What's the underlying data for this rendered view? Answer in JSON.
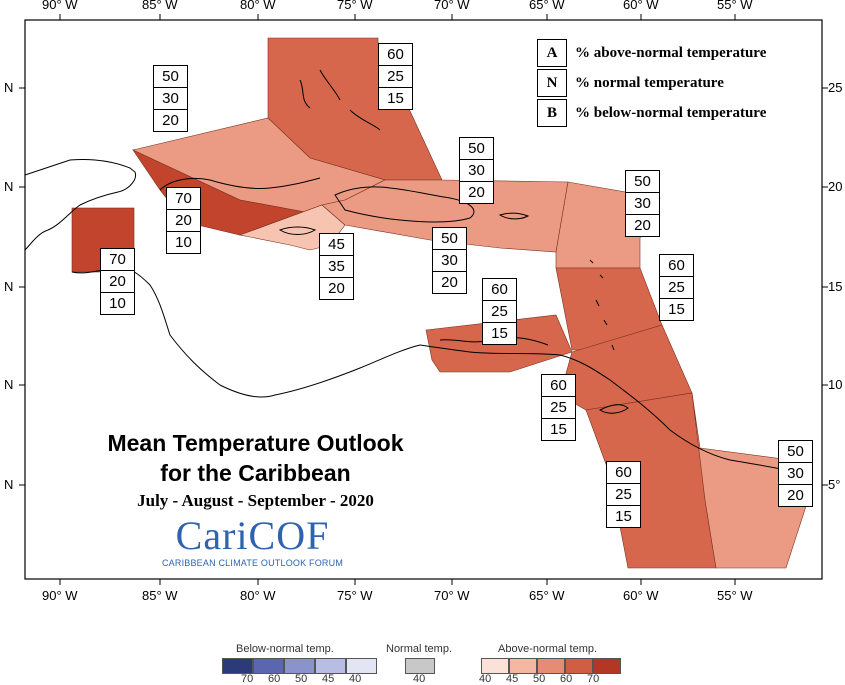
{
  "axes": {
    "lon_ticks_top": [
      "90° W",
      "85° W",
      "80° W",
      "75° W",
      "70° W",
      "65° W",
      "60° W",
      "55° W"
    ],
    "lon_ticks_bottom": [
      "90° W",
      "85° W",
      "80° W",
      "75° W",
      "70° W",
      "65° W",
      "60° W",
      "55° W"
    ],
    "lat_ticks_left": [
      "N",
      "N",
      "N",
      "N",
      "N"
    ],
    "lat_ticks_right": [
      "25",
      "20",
      "15",
      "10",
      "5°"
    ]
  },
  "key": {
    "rows": [
      {
        "letter": "A",
        "text": "% above-normal temperature"
      },
      {
        "letter": "N",
        "text": "% normal temperature"
      },
      {
        "letter": "B",
        "text": "% below-normal temperature"
      }
    ]
  },
  "title": {
    "line1": "Mean Temperature Outlook",
    "line2": "for the Caribbean",
    "period": "July - August - September - 2020"
  },
  "logo": {
    "text": "CariCOF",
    "sub": "CARIBBEAN CLIMATE OUTLOOK FORUM"
  },
  "probability_boxes": [
    {
      "region": "bahamas",
      "a": "60",
      "n": "25",
      "b": "15"
    },
    {
      "region": "cuba-north",
      "a": "50",
      "n": "30",
      "b": "20"
    },
    {
      "region": "cuba-south",
      "a": "70",
      "n": "20",
      "b": "10"
    },
    {
      "region": "belize",
      "a": "70",
      "n": "20",
      "b": "10"
    },
    {
      "region": "jamaica",
      "a": "45",
      "n": "35",
      "b": "20"
    },
    {
      "region": "hispaniola-north",
      "a": "50",
      "n": "30",
      "b": "20"
    },
    {
      "region": "hispaniola-south",
      "a": "50",
      "n": "30",
      "b": "20"
    },
    {
      "region": "leewards",
      "a": "50",
      "n": "30",
      "b": "20"
    },
    {
      "region": "windwards",
      "a": "60",
      "n": "25",
      "b": "15"
    },
    {
      "region": "abc-islands",
      "a": "60",
      "n": "25",
      "b": "15"
    },
    {
      "region": "trinidad",
      "a": "60",
      "n": "25",
      "b": "15"
    },
    {
      "region": "guyana",
      "a": "60",
      "n": "25",
      "b": "15"
    },
    {
      "region": "suriname",
      "a": "50",
      "n": "30",
      "b": "20"
    }
  ],
  "colorbar": {
    "below_title": "Below-normal temp.",
    "normal_title": "Normal temp.",
    "above_title": "Above-normal temp.",
    "below_ticks": [
      "70",
      "60",
      "50",
      "45",
      "40"
    ],
    "normal_ticks": [
      "40"
    ],
    "above_ticks": [
      "40",
      "45",
      "50",
      "60",
      "70"
    ],
    "below_colors": [
      "#2b3a78",
      "#5a67b0",
      "#8a93cc",
      "#b8bde3",
      "#e3e5f5"
    ],
    "normal_color": "#c8c8c8",
    "above_colors": [
      "#fbe1d8",
      "#f4b7a2",
      "#e58d73",
      "#cf5e44",
      "#b33824"
    ]
  },
  "zone_colors": {
    "c45": "#f6c4b0",
    "c50": "#eb9b83",
    "c60": "#d6674d",
    "c70": "#c2442d"
  }
}
